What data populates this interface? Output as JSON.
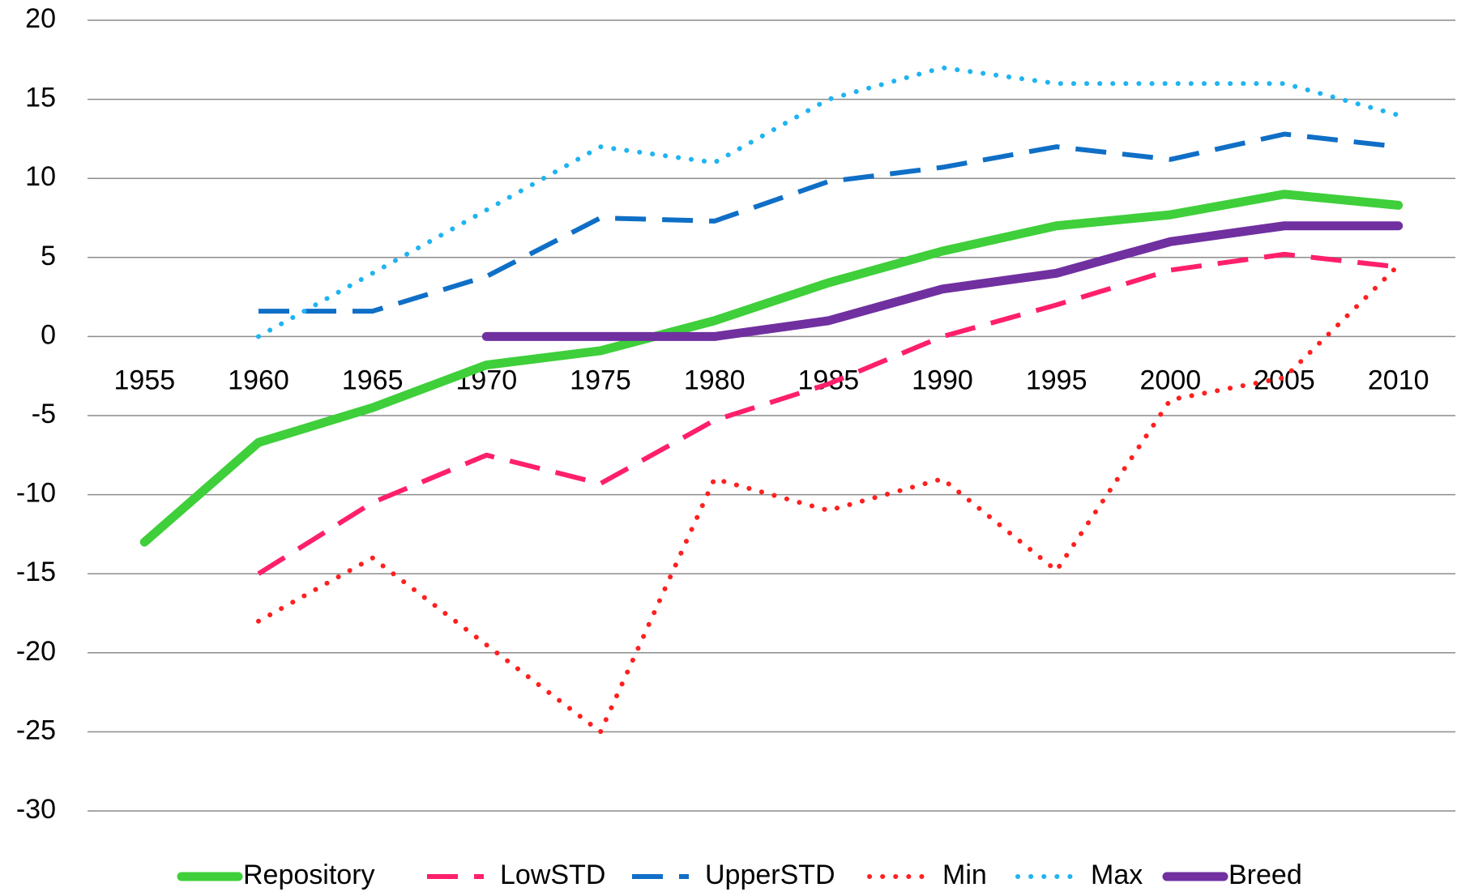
{
  "chart_data": {
    "type": "line",
    "categories": [
      "1955",
      "1960",
      "1965",
      "1970",
      "1975",
      "1980",
      "1985",
      "1990",
      "1995",
      "2000",
      "2005",
      "2010"
    ],
    "series": [
      {
        "name": "Repository",
        "color": "#3ecf3a",
        "dash": "solid",
        "values": [
          -13,
          -6.7,
          -4.5,
          -1.8,
          -0.9,
          1,
          3.4,
          5.4,
          7,
          7.7,
          9,
          8.3
        ]
      },
      {
        "name": "LowSTD",
        "color": "#ff1f6b",
        "dash": "dash",
        "values": [
          null,
          -15,
          -10.5,
          -7.5,
          -9.3,
          -5.3,
          -3,
          0,
          2,
          4.2,
          5.2,
          4.4
        ]
      },
      {
        "name": "UpperSTD",
        "color": "#0f6fc6",
        "dash": "dash",
        "values": [
          null,
          1.6,
          1.6,
          3.8,
          7.5,
          7.3,
          9.8,
          10.7,
          12,
          11.2,
          12.8,
          12
        ]
      },
      {
        "name": "Min",
        "color": "#ff2020",
        "dash": "dot",
        "values": [
          null,
          -18,
          -14,
          -19.5,
          -25,
          -9,
          -11,
          -9,
          -14.8,
          -4,
          -2.6,
          4.5
        ]
      },
      {
        "name": "Max",
        "color": "#1fb4f0",
        "dash": "dot",
        "values": [
          null,
          0,
          4,
          8,
          12,
          11,
          15,
          17,
          16,
          16,
          16,
          14
        ]
      },
      {
        "name": "Breed",
        "color": "#7030a0",
        "dash": "solid",
        "values": [
          null,
          null,
          null,
          0,
          0,
          0,
          1,
          3,
          4,
          6,
          7,
          7
        ]
      }
    ],
    "ylim": [
      -30,
      20
    ],
    "yticks": [
      -30,
      -25,
      -20,
      -15,
      -10,
      -5,
      0,
      5,
      10,
      15,
      20
    ],
    "grid": true,
    "legend": "bottom"
  }
}
